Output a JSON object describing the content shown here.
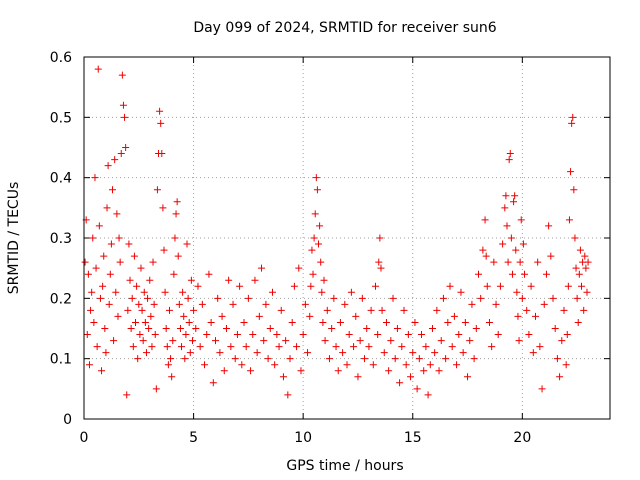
{
  "chart_data": {
    "type": "scatter",
    "title": "Day 099 of 2024, SRMTID for receiver sun6",
    "xlabel": "GPS time / hours",
    "ylabel": "SRMTID / TECUs",
    "xlim": [
      0,
      24
    ],
    "ylim": [
      0,
      0.6
    ],
    "xticks": [
      0,
      5,
      10,
      15,
      20
    ],
    "yticks": [
      0,
      0.1,
      0.2,
      0.3,
      0.4,
      0.5,
      0.6
    ],
    "xtick_labels": [
      "0",
      "5",
      "10",
      "15",
      "20"
    ],
    "ytick_labels": [
      "0",
      "0.1",
      "0.2",
      "0.3",
      "0.4",
      "0.5",
      "0.6"
    ],
    "grid": true,
    "marker": "+",
    "series": [
      {
        "name": "sun6",
        "color": "#ee0000",
        "points": [
          [
            0.05,
            0.26
          ],
          [
            0.1,
            0.33
          ],
          [
            0.15,
            0.14
          ],
          [
            0.2,
            0.24
          ],
          [
            0.25,
            0.09
          ],
          [
            0.3,
            0.18
          ],
          [
            0.35,
            0.21
          ],
          [
            0.4,
            0.3
          ],
          [
            0.45,
            0.16
          ],
          [
            0.5,
            0.4
          ],
          [
            0.55,
            0.25
          ],
          [
            0.6,
            0.12
          ],
          [
            0.65,
            0.58
          ],
          [
            0.7,
            0.32
          ],
          [
            0.75,
            0.2
          ],
          [
            0.8,
            0.08
          ],
          [
            0.85,
            0.22
          ],
          [
            0.9,
            0.27
          ],
          [
            0.95,
            0.15
          ],
          [
            1.0,
            0.11
          ],
          [
            1.05,
            0.35
          ],
          [
            1.1,
            0.42
          ],
          [
            1.15,
            0.19
          ],
          [
            1.2,
            0.24
          ],
          [
            1.25,
            0.29
          ],
          [
            1.3,
            0.38
          ],
          [
            1.35,
            0.13
          ],
          [
            1.4,
            0.43
          ],
          [
            1.45,
            0.21
          ],
          [
            1.5,
            0.34
          ],
          [
            1.55,
            0.17
          ],
          [
            1.6,
            0.3
          ],
          [
            1.65,
            0.26
          ],
          [
            1.7,
            0.44
          ],
          [
            1.75,
            0.57
          ],
          [
            1.8,
            0.52
          ],
          [
            1.85,
            0.5
          ],
          [
            1.9,
            0.45
          ],
          [
            1.95,
            0.04
          ],
          [
            2.0,
            0.18
          ],
          [
            2.05,
            0.29
          ],
          [
            2.1,
            0.23
          ],
          [
            2.15,
            0.15
          ],
          [
            2.2,
            0.2
          ],
          [
            2.25,
            0.12
          ],
          [
            2.3,
            0.27
          ],
          [
            2.35,
            0.16
          ],
          [
            2.4,
            0.22
          ],
          [
            2.45,
            0.1
          ],
          [
            2.5,
            0.19
          ],
          [
            2.55,
            0.14
          ],
          [
            2.6,
            0.25
          ],
          [
            2.65,
            0.18
          ],
          [
            2.7,
            0.13
          ],
          [
            2.75,
            0.21
          ],
          [
            2.8,
            0.16
          ],
          [
            2.85,
            0.11
          ],
          [
            2.9,
            0.2
          ],
          [
            2.95,
            0.15
          ],
          [
            3.0,
            0.23
          ],
          [
            3.05,
            0.17
          ],
          [
            3.1,
            0.12
          ],
          [
            3.15,
            0.26
          ],
          [
            3.2,
            0.19
          ],
          [
            3.25,
            0.14
          ],
          [
            3.3,
            0.05
          ],
          [
            3.35,
            0.38
          ],
          [
            3.4,
            0.44
          ],
          [
            3.45,
            0.51
          ],
          [
            3.5,
            0.49
          ],
          [
            3.55,
            0.44
          ],
          [
            3.6,
            0.35
          ],
          [
            3.65,
            0.28
          ],
          [
            3.7,
            0.21
          ],
          [
            3.75,
            0.15
          ],
          [
            3.8,
            0.12
          ],
          [
            3.85,
            0.09
          ],
          [
            3.9,
            0.18
          ],
          [
            3.95,
            0.1
          ],
          [
            4.0,
            0.07
          ],
          [
            4.05,
            0.13
          ],
          [
            4.1,
            0.24
          ],
          [
            4.15,
            0.3
          ],
          [
            4.2,
            0.34
          ],
          [
            4.25,
            0.36
          ],
          [
            4.3,
            0.27
          ],
          [
            4.35,
            0.19
          ],
          [
            4.4,
            0.15
          ],
          [
            4.45,
            0.12
          ],
          [
            4.5,
            0.21
          ],
          [
            4.55,
            0.17
          ],
          [
            4.6,
            0.1
          ],
          [
            4.65,
            0.14
          ],
          [
            4.7,
            0.29
          ],
          [
            4.75,
            0.2
          ],
          [
            4.8,
            0.16
          ],
          [
            4.85,
            0.11
          ],
          [
            4.9,
            0.23
          ],
          [
            4.95,
            0.13
          ],
          [
            5.0,
            0.18
          ],
          [
            5.1,
            0.15
          ],
          [
            5.2,
            0.22
          ],
          [
            5.3,
            0.12
          ],
          [
            5.4,
            0.19
          ],
          [
            5.5,
            0.09
          ],
          [
            5.6,
            0.14
          ],
          [
            5.7,
            0.24
          ],
          [
            5.8,
            0.16
          ],
          [
            5.9,
            0.06
          ],
          [
            6.0,
            0.13
          ],
          [
            6.1,
            0.2
          ],
          [
            6.2,
            0.11
          ],
          [
            6.3,
            0.17
          ],
          [
            6.4,
            0.08
          ],
          [
            6.5,
            0.15
          ],
          [
            6.6,
            0.23
          ],
          [
            6.7,
            0.12
          ],
          [
            6.8,
            0.19
          ],
          [
            6.9,
            0.1
          ],
          [
            7.0,
            0.14
          ],
          [
            7.1,
            0.22
          ],
          [
            7.2,
            0.09
          ],
          [
            7.3,
            0.16
          ],
          [
            7.4,
            0.12
          ],
          [
            7.5,
            0.2
          ],
          [
            7.6,
            0.08
          ],
          [
            7.7,
            0.14
          ],
          [
            7.8,
            0.23
          ],
          [
            7.9,
            0.11
          ],
          [
            8.0,
            0.17
          ],
          [
            8.1,
            0.25
          ],
          [
            8.2,
            0.13
          ],
          [
            8.3,
            0.19
          ],
          [
            8.4,
            0.1
          ],
          [
            8.5,
            0.15
          ],
          [
            8.6,
            0.21
          ],
          [
            8.7,
            0.09
          ],
          [
            8.8,
            0.14
          ],
          [
            8.9,
            0.12
          ],
          [
            9.0,
            0.18
          ],
          [
            9.1,
            0.07
          ],
          [
            9.2,
            0.13
          ],
          [
            9.3,
            0.04
          ],
          [
            9.4,
            0.1
          ],
          [
            9.5,
            0.16
          ],
          [
            9.6,
            0.22
          ],
          [
            9.7,
            0.12
          ],
          [
            9.8,
            0.25
          ],
          [
            9.9,
            0.08
          ],
          [
            10.0,
            0.14
          ],
          [
            10.1,
            0.19
          ],
          [
            10.2,
            0.11
          ],
          [
            10.3,
            0.17
          ],
          [
            10.35,
            0.22
          ],
          [
            10.4,
            0.28
          ],
          [
            10.45,
            0.24
          ],
          [
            10.5,
            0.3
          ],
          [
            10.55,
            0.34
          ],
          [
            10.6,
            0.4
          ],
          [
            10.65,
            0.38
          ],
          [
            10.7,
            0.29
          ],
          [
            10.75,
            0.32
          ],
          [
            10.8,
            0.26
          ],
          [
            10.85,
            0.21
          ],
          [
            10.9,
            0.16
          ],
          [
            10.95,
            0.23
          ],
          [
            11.0,
            0.13
          ],
          [
            11.1,
            0.18
          ],
          [
            11.2,
            0.1
          ],
          [
            11.3,
            0.15
          ],
          [
            11.4,
            0.2
          ],
          [
            11.5,
            0.12
          ],
          [
            11.6,
            0.08
          ],
          [
            11.7,
            0.16
          ],
          [
            11.8,
            0.11
          ],
          [
            11.9,
            0.19
          ],
          [
            12.0,
            0.09
          ],
          [
            12.1,
            0.14
          ],
          [
            12.2,
            0.21
          ],
          [
            12.3,
            0.12
          ],
          [
            12.4,
            0.17
          ],
          [
            12.5,
            0.07
          ],
          [
            12.6,
            0.13
          ],
          [
            12.7,
            0.2
          ],
          [
            12.8,
            0.1
          ],
          [
            12.9,
            0.15
          ],
          [
            13.0,
            0.12
          ],
          [
            13.1,
            0.18
          ],
          [
            13.2,
            0.09
          ],
          [
            13.3,
            0.22
          ],
          [
            13.4,
            0.14
          ],
          [
            13.45,
            0.26
          ],
          [
            13.5,
            0.3
          ],
          [
            13.55,
            0.25
          ],
          [
            13.6,
            0.18
          ],
          [
            13.7,
            0.11
          ],
          [
            13.8,
            0.16
          ],
          [
            13.9,
            0.08
          ],
          [
            14.0,
            0.13
          ],
          [
            14.1,
            0.2
          ],
          [
            14.2,
            0.1
          ],
          [
            14.3,
            0.15
          ],
          [
            14.4,
            0.06
          ],
          [
            14.5,
            0.12
          ],
          [
            14.6,
            0.18
          ],
          [
            14.7,
            0.09
          ],
          [
            14.8,
            0.14
          ],
          [
            14.9,
            0.07
          ],
          [
            15.0,
            0.11
          ],
          [
            15.1,
            0.16
          ],
          [
            15.2,
            0.05
          ],
          [
            15.3,
            0.1
          ],
          [
            15.4,
            0.14
          ],
          [
            15.5,
            0.08
          ],
          [
            15.6,
            0.12
          ],
          [
            15.7,
            0.04
          ],
          [
            15.8,
            0.09
          ],
          [
            15.9,
            0.15
          ],
          [
            16.0,
            0.11
          ],
          [
            16.1,
            0.18
          ],
          [
            16.2,
            0.08
          ],
          [
            16.3,
            0.13
          ],
          [
            16.4,
            0.2
          ],
          [
            16.5,
            0.1
          ],
          [
            16.6,
            0.16
          ],
          [
            16.7,
            0.22
          ],
          [
            16.8,
            0.12
          ],
          [
            16.9,
            0.17
          ],
          [
            17.0,
            0.09
          ],
          [
            17.1,
            0.14
          ],
          [
            17.2,
            0.21
          ],
          [
            17.3,
            0.11
          ],
          [
            17.4,
            0.16
          ],
          [
            17.5,
            0.07
          ],
          [
            17.6,
            0.13
          ],
          [
            17.7,
            0.19
          ],
          [
            17.8,
            0.1
          ],
          [
            17.9,
            0.15
          ],
          [
            18.0,
            0.24
          ],
          [
            18.1,
            0.2
          ],
          [
            18.2,
            0.28
          ],
          [
            18.3,
            0.33
          ],
          [
            18.35,
            0.27
          ],
          [
            18.4,
            0.22
          ],
          [
            18.5,
            0.16
          ],
          [
            18.6,
            0.12
          ],
          [
            18.7,
            0.26
          ],
          [
            18.8,
            0.19
          ],
          [
            18.9,
            0.14
          ],
          [
            19.0,
            0.22
          ],
          [
            19.1,
            0.29
          ],
          [
            19.2,
            0.35
          ],
          [
            19.25,
            0.37
          ],
          [
            19.3,
            0.32
          ],
          [
            19.35,
            0.26
          ],
          [
            19.4,
            0.43
          ],
          [
            19.45,
            0.44
          ],
          [
            19.5,
            0.3
          ],
          [
            19.55,
            0.24
          ],
          [
            19.6,
            0.36
          ],
          [
            19.65,
            0.37
          ],
          [
            19.7,
            0.28
          ],
          [
            19.75,
            0.21
          ],
          [
            19.8,
            0.17
          ],
          [
            19.85,
            0.13
          ],
          [
            19.9,
            0.26
          ],
          [
            19.95,
            0.33
          ],
          [
            20.0,
            0.2
          ],
          [
            20.05,
            0.29
          ],
          [
            20.1,
            0.24
          ],
          [
            20.2,
            0.18
          ],
          [
            20.3,
            0.14
          ],
          [
            20.4,
            0.22
          ],
          [
            20.5,
            0.11
          ],
          [
            20.6,
            0.17
          ],
          [
            20.7,
            0.26
          ],
          [
            20.8,
            0.12
          ],
          [
            20.9,
            0.05
          ],
          [
            21.0,
            0.19
          ],
          [
            21.1,
            0.24
          ],
          [
            21.2,
            0.32
          ],
          [
            21.3,
            0.27
          ],
          [
            21.4,
            0.2
          ],
          [
            21.5,
            0.15
          ],
          [
            21.6,
            0.1
          ],
          [
            21.7,
            0.07
          ],
          [
            21.8,
            0.13
          ],
          [
            21.9,
            0.18
          ],
          [
            22.0,
            0.09
          ],
          [
            22.05,
            0.14
          ],
          [
            22.1,
            0.22
          ],
          [
            22.15,
            0.33
          ],
          [
            22.2,
            0.41
          ],
          [
            22.25,
            0.49
          ],
          [
            22.3,
            0.5
          ],
          [
            22.35,
            0.38
          ],
          [
            22.4,
            0.3
          ],
          [
            22.45,
            0.25
          ],
          [
            22.5,
            0.2
          ],
          [
            22.55,
            0.16
          ],
          [
            22.6,
            0.24
          ],
          [
            22.65,
            0.28
          ],
          [
            22.7,
            0.22
          ],
          [
            22.75,
            0.26
          ],
          [
            22.8,
            0.18
          ],
          [
            22.85,
            0.27
          ],
          [
            22.9,
            0.25
          ],
          [
            22.95,
            0.21
          ],
          [
            23.0,
            0.26
          ]
        ]
      }
    ]
  }
}
